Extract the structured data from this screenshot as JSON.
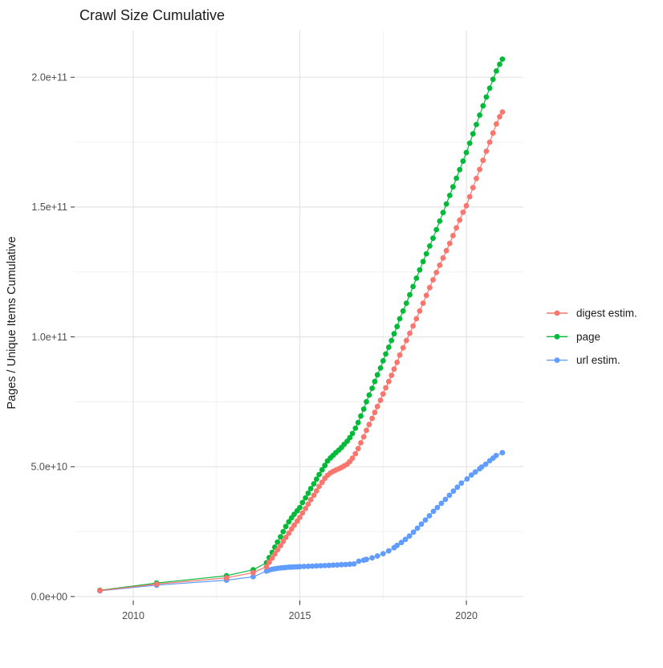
{
  "title": "Crawl Size Cumulative",
  "axes": {
    "y_label": "Pages / Unique Items Cumulative",
    "x_tick_labels": [
      "2010",
      "2015",
      "2020"
    ],
    "y_tick_labels": [
      "0.0e+00",
      "5.0e+10",
      "1.0e+11",
      "1.5e+11",
      "2.0e+11"
    ]
  },
  "legend": [
    {
      "label": "digest estim.",
      "color": "#F8766D",
      "series": "digest estim."
    },
    {
      "label": "page",
      "color": "#00BA38",
      "series": "page"
    },
    {
      "label": "url estim.",
      "color": "#619CFF",
      "series": "url estim."
    }
  ],
  "chart_data": {
    "type": "line",
    "title": "Crawl Size Cumulative",
    "xlabel": "",
    "ylabel": "Pages / Unique Items Cumulative",
    "xlim": [
      2008.24,
      2021.71
    ],
    "ylim": [
      -1550000000,
      218000000000
    ],
    "x_major_ticks": [
      2010,
      2015,
      2020
    ],
    "x_minor_ticks": [
      2012.5,
      2017.5
    ],
    "y_major_ticks": [
      0,
      50000000000.0,
      100000000000.0,
      150000000000.0,
      200000000000.0
    ],
    "y_minor_ticks": [
      25000000000.0,
      75000000000.0,
      125000000000.0,
      175000000000.0
    ],
    "grid": true,
    "legend_position": "right",
    "background": "#FFFFFF",
    "major_grid_color": "#E4E4E4",
    "minor_grid_color": "#EFEFEF",
    "tick_mark_color": "#333333",
    "draw_order": [
      "page",
      "url estim.",
      "digest estim."
    ],
    "series": [
      {
        "name": "page",
        "color": "#00BA38",
        "points": [
          [
            2009.0,
            2400000000.0
          ],
          [
            2010.7,
            5200000000.0
          ],
          [
            2012.8,
            8000000000.0
          ],
          [
            2013.6,
            10300000000.0
          ],
          [
            2014.0,
            13000000000.0
          ],
          [
            2014.08,
            15000000000.0
          ],
          [
            2014.17,
            17000000000.0
          ],
          [
            2014.25,
            19000000000.0
          ],
          [
            2014.33,
            21000000000.0
          ],
          [
            2014.42,
            23000000000.0
          ],
          [
            2014.5,
            25000000000.0
          ],
          [
            2014.58,
            27000000000.0
          ],
          [
            2014.67,
            28800000000.0
          ],
          [
            2014.75,
            30300000000.0
          ],
          [
            2014.83,
            31700000000.0
          ],
          [
            2014.92,
            33000000000.0
          ],
          [
            2015.0,
            34300000000.0
          ],
          [
            2015.08,
            36200000000.0
          ],
          [
            2015.17,
            38000000000.0
          ],
          [
            2015.25,
            39800000000.0
          ],
          [
            2015.33,
            41600000000.0
          ],
          [
            2015.42,
            43400000000.0
          ],
          [
            2015.5,
            45200000000.0
          ],
          [
            2015.58,
            47000000000.0
          ],
          [
            2015.67,
            48800000000.0
          ],
          [
            2015.75,
            50500000000.0
          ],
          [
            2015.83,
            52200000000.0
          ],
          [
            2015.92,
            53400000000.0
          ],
          [
            2016.0,
            54400000000.0
          ],
          [
            2016.08,
            55400000000.0
          ],
          [
            2016.17,
            56400000000.0
          ],
          [
            2016.25,
            57400000000.0
          ],
          [
            2016.33,
            58600000000.0
          ],
          [
            2016.42,
            59800000000.0
          ],
          [
            2016.5,
            61200000000.0
          ],
          [
            2016.58,
            62800000000.0
          ],
          [
            2016.67,
            64800000000.0
          ],
          [
            2016.75,
            67000000000.0
          ],
          [
            2016.83,
            69500000000.0
          ],
          [
            2016.92,
            72200000000.0
          ],
          [
            2017.0,
            75000000000.0
          ],
          [
            2017.08,
            77600000000.0
          ],
          [
            2017.17,
            80200000000.0
          ],
          [
            2017.25,
            82800000000.0
          ],
          [
            2017.33,
            85400000000.0
          ],
          [
            2017.42,
            88000000000.0
          ],
          [
            2017.5,
            90800000000.0
          ],
          [
            2017.58,
            93400000000.0
          ],
          [
            2017.67,
            96000000000.0
          ],
          [
            2017.75,
            98600000000.0
          ],
          [
            2017.83,
            101200000000.0
          ],
          [
            2017.92,
            104000000000.0
          ],
          [
            2018.0,
            107000000000.0
          ],
          [
            2018.1,
            110000000000.0
          ],
          [
            2018.2,
            113000000000.0
          ],
          [
            2018.3,
            116200000000.0
          ],
          [
            2018.4,
            119400000000.0
          ],
          [
            2018.5,
            122600000000.0
          ],
          [
            2018.6,
            125800000000.0
          ],
          [
            2018.7,
            129000000000.0
          ],
          [
            2018.8,
            132000000000.0
          ],
          [
            2018.9,
            135000000000.0
          ],
          [
            2019.0,
            138000000000.0
          ],
          [
            2019.1,
            141300000000.0
          ],
          [
            2019.2,
            144600000000.0
          ],
          [
            2019.3,
            147900000000.0
          ],
          [
            2019.4,
            151200000000.0
          ],
          [
            2019.5,
            154500000000.0
          ],
          [
            2019.6,
            157800000000.0
          ],
          [
            2019.7,
            161100000000.0
          ],
          [
            2019.8,
            164400000000.0
          ],
          [
            2019.9,
            167700000000.0
          ],
          [
            2020.0,
            171000000000.0
          ],
          [
            2020.1,
            174600000000.0
          ],
          [
            2020.2,
            178200000000.0
          ],
          [
            2020.3,
            181800000000.0
          ],
          [
            2020.4,
            185400000000.0
          ],
          [
            2020.5,
            189000000000.0
          ],
          [
            2020.6,
            192400000000.0
          ],
          [
            2020.7,
            195800000000.0
          ],
          [
            2020.8,
            199200000000.0
          ],
          [
            2020.9,
            202400000000.0
          ],
          [
            2021.0,
            205000000000.0
          ],
          [
            2021.08,
            207000000000.0
          ]
        ]
      },
      {
        "name": "url estim.",
        "color": "#619CFF",
        "points": [
          [
            2009.0,
            2200000000.0
          ],
          [
            2010.7,
            4400000000.0
          ],
          [
            2012.8,
            6300000000.0
          ],
          [
            2013.6,
            7600000000.0
          ],
          [
            2014.0,
            9800000000.0
          ],
          [
            2014.08,
            10200000000.0
          ],
          [
            2014.17,
            10500000000.0
          ],
          [
            2014.25,
            10700000000.0
          ],
          [
            2014.33,
            10850000000.0
          ],
          [
            2014.42,
            11000000000.0
          ],
          [
            2014.5,
            11100000000.0
          ],
          [
            2014.58,
            11200000000.0
          ],
          [
            2014.67,
            11300000000.0
          ],
          [
            2014.75,
            11350000000.0
          ],
          [
            2014.83,
            11400000000.0
          ],
          [
            2014.92,
            11450000000.0
          ],
          [
            2015.0,
            11500000000.0
          ],
          [
            2015.125,
            11580000000.0
          ],
          [
            2015.25,
            11650000000.0
          ],
          [
            2015.375,
            11720000000.0
          ],
          [
            2015.5,
            11800000000.0
          ],
          [
            2015.625,
            11870000000.0
          ],
          [
            2015.75,
            11940000000.0
          ],
          [
            2015.875,
            12000000000.0
          ],
          [
            2016.0,
            12100000000.0
          ],
          [
            2016.125,
            12180000000.0
          ],
          [
            2016.25,
            12260000000.0
          ],
          [
            2016.375,
            12340000000.0
          ],
          [
            2016.5,
            12450000000.0
          ],
          [
            2016.625,
            12550000000.0
          ],
          [
            2016.77,
            13600000000.0
          ],
          [
            2016.92,
            14000000000.0
          ],
          [
            2017.0,
            14300000000.0
          ],
          [
            2017.17,
            14900000000.0
          ],
          [
            2017.33,
            15600000000.0
          ],
          [
            2017.5,
            16500000000.0
          ],
          [
            2017.67,
            17600000000.0
          ],
          [
            2017.83,
            18800000000.0
          ],
          [
            2017.92,
            19700000000.0
          ],
          [
            2018.05,
            20800000000.0
          ],
          [
            2018.17,
            22000000000.0
          ],
          [
            2018.29,
            23300000000.0
          ],
          [
            2018.41,
            24800000000.0
          ],
          [
            2018.53,
            26300000000.0
          ],
          [
            2018.65,
            27900000000.0
          ],
          [
            2018.77,
            29500000000.0
          ],
          [
            2018.89,
            31100000000.0
          ],
          [
            2019.01,
            32800000000.0
          ],
          [
            2019.13,
            34300000000.0
          ],
          [
            2019.25,
            35900000000.0
          ],
          [
            2019.37,
            37400000000.0
          ],
          [
            2019.49,
            39000000000.0
          ],
          [
            2019.61,
            40600000000.0
          ],
          [
            2019.73,
            42100000000.0
          ],
          [
            2019.85,
            43700000000.0
          ],
          [
            2020.02,
            45300000000.0
          ],
          [
            2020.15,
            46800000000.0
          ],
          [
            2020.27,
            48000000000.0
          ],
          [
            2020.4,
            49200000000.0
          ],
          [
            2020.46,
            49900000000.0
          ],
          [
            2020.58,
            51000000000.0
          ],
          [
            2020.7,
            52300000000.0
          ],
          [
            2020.8,
            53300000000.0
          ],
          [
            2020.89,
            54300000000.0
          ],
          [
            2021.08,
            55400000000.0
          ]
        ]
      },
      {
        "name": "digest estim.",
        "color": "#F8766D",
        "points": [
          [
            2009.0,
            2300000000.0
          ],
          [
            2010.7,
            4800000000.0
          ],
          [
            2012.8,
            7200000000.0
          ],
          [
            2013.6,
            9200000000.0
          ],
          [
            2014.0,
            11500000000.0
          ],
          [
            2014.08,
            13200000000.0
          ],
          [
            2014.17,
            14800000000.0
          ],
          [
            2014.25,
            16400000000.0
          ],
          [
            2014.33,
            18000000000.0
          ],
          [
            2014.42,
            19600000000.0
          ],
          [
            2014.5,
            21200000000.0
          ],
          [
            2014.58,
            22800000000.0
          ],
          [
            2014.67,
            24400000000.0
          ],
          [
            2014.75,
            26000000000.0
          ],
          [
            2014.83,
            27500000000.0
          ],
          [
            2014.92,
            29000000000.0
          ],
          [
            2015.0,
            30500000000.0
          ],
          [
            2015.08,
            32200000000.0
          ],
          [
            2015.17,
            33900000000.0
          ],
          [
            2015.25,
            35600000000.0
          ],
          [
            2015.33,
            37300000000.0
          ],
          [
            2015.42,
            39000000000.0
          ],
          [
            2015.5,
            40700000000.0
          ],
          [
            2015.58,
            42400000000.0
          ],
          [
            2015.67,
            44000000000.0
          ],
          [
            2015.75,
            45500000000.0
          ],
          [
            2015.83,
            46700000000.0
          ],
          [
            2015.92,
            47600000000.0
          ],
          [
            2016.0,
            48200000000.0
          ],
          [
            2016.08,
            48700000000.0
          ],
          [
            2016.17,
            49200000000.0
          ],
          [
            2016.25,
            49700000000.0
          ],
          [
            2016.33,
            50300000000.0
          ],
          [
            2016.42,
            51000000000.0
          ],
          [
            2016.5,
            52000000000.0
          ],
          [
            2016.58,
            53300000000.0
          ],
          [
            2016.67,
            55000000000.0
          ],
          [
            2016.75,
            57000000000.0
          ],
          [
            2016.83,
            59200000000.0
          ],
          [
            2016.92,
            61500000000.0
          ],
          [
            2017.0,
            64000000000.0
          ],
          [
            2017.08,
            66300000000.0
          ],
          [
            2017.17,
            68600000000.0
          ],
          [
            2017.25,
            70900000000.0
          ],
          [
            2017.33,
            73200000000.0
          ],
          [
            2017.42,
            75600000000.0
          ],
          [
            2017.5,
            78000000000.0
          ],
          [
            2017.58,
            80400000000.0
          ],
          [
            2017.67,
            82800000000.0
          ],
          [
            2017.75,
            85200000000.0
          ],
          [
            2017.83,
            87600000000.0
          ],
          [
            2017.92,
            90200000000.0
          ],
          [
            2018.0,
            93000000000.0
          ],
          [
            2018.1,
            95800000000.0
          ],
          [
            2018.2,
            98600000000.0
          ],
          [
            2018.3,
            101400000000.0
          ],
          [
            2018.4,
            104200000000.0
          ],
          [
            2018.5,
            107000000000.0
          ],
          [
            2018.6,
            110000000000.0
          ],
          [
            2018.7,
            113000000000.0
          ],
          [
            2018.8,
            116000000000.0
          ],
          [
            2018.9,
            119000000000.0
          ],
          [
            2019.0,
            122000000000.0
          ],
          [
            2019.1,
            124800000000.0
          ],
          [
            2019.2,
            127600000000.0
          ],
          [
            2019.3,
            130400000000.0
          ],
          [
            2019.4,
            133200000000.0
          ],
          [
            2019.5,
            136000000000.0
          ],
          [
            2019.6,
            139000000000.0
          ],
          [
            2019.7,
            142000000000.0
          ],
          [
            2019.8,
            145000000000.0
          ],
          [
            2019.9,
            148000000000.0
          ],
          [
            2020.0,
            150500000000.0
          ],
          [
            2020.1,
            154000000000.0
          ],
          [
            2020.2,
            157500000000.0
          ],
          [
            2020.3,
            161000000000.0
          ],
          [
            2020.4,
            164500000000.0
          ],
          [
            2020.5,
            168000000000.0
          ],
          [
            2020.6,
            171500000000.0
          ],
          [
            2020.7,
            175000000000.0
          ],
          [
            2020.8,
            178500000000.0
          ],
          [
            2020.9,
            182000000000.0
          ],
          [
            2021.0,
            184800000000.0
          ],
          [
            2021.08,
            186600000000.0
          ]
        ]
      }
    ]
  }
}
